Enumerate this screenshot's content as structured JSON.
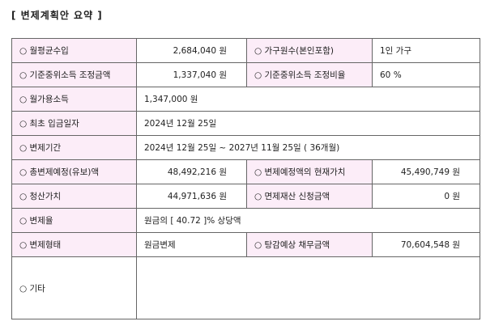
{
  "title": "[ 변제계획안 요약 ]",
  "bullet": "○",
  "rows": {
    "monthly_income": {
      "label": "월평균수입",
      "value": "2,684,040 원"
    },
    "household": {
      "label": "가구원수(본인포함)",
      "value": "1인 가구"
    },
    "median_adjusted_amount": {
      "label": "기준중위소득 조정금액",
      "value": "1,337,040 원"
    },
    "median_adjusted_ratio": {
      "label": "기준중위소득 조정비율",
      "value": "60 %"
    },
    "disposable_income": {
      "label": "월가용소득",
      "value": "1,347,000 원"
    },
    "first_payment_date": {
      "label": "최초 입금일자",
      "value": "2024년 12월 25일"
    },
    "repayment_period": {
      "label": "변제기간",
      "value": "2024년 12월 25일 ~ 2027년 11월 25일 ( 36개월)"
    },
    "total_repayment": {
      "label": "총변제예정(유보)액",
      "value": "48,492,216 원"
    },
    "present_value": {
      "label": "변제예정액의 현재가치",
      "value": "45,490,749 원"
    },
    "liquidation_value": {
      "label": "청산가치",
      "value": "44,971,636 원"
    },
    "exempt_property": {
      "label": "면제재산 신청금액",
      "value": "0 원"
    },
    "repayment_rate": {
      "label": "변제율",
      "value": "원금의 [ 40.72 ]% 상당액"
    },
    "repayment_type": {
      "label": "변제형태",
      "value": "원금변제"
    },
    "expected_debt": {
      "label": "탕감예상 채무금액",
      "value": "70,604,548 원"
    },
    "other": {
      "label": "기타",
      "value": ""
    }
  },
  "colors": {
    "label_bg": "#fcedf8",
    "border": "#666666"
  }
}
